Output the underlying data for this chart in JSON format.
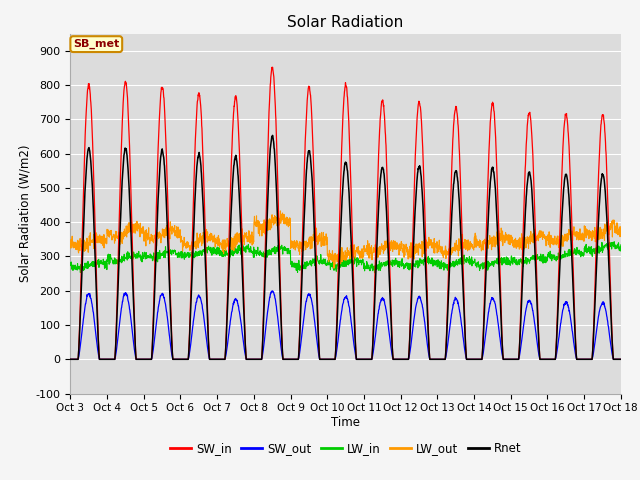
{
  "title": "Solar Radiation",
  "xlabel": "Time",
  "ylabel": "Solar Radiation (W/m2)",
  "ylim": [
    -100,
    950
  ],
  "yticks": [
    -100,
    0,
    100,
    200,
    300,
    400,
    500,
    600,
    700,
    800,
    900
  ],
  "plot_bg_color": "#dcdcdc",
  "fig_bg_color": "#f5f5f5",
  "grid_color": "#ffffff",
  "colors": {
    "SW_in": "#ff0000",
    "SW_out": "#0000ff",
    "LW_in": "#00cc00",
    "LW_out": "#ff9900",
    "Rnet": "#000000"
  },
  "legend_label": "SB_met",
  "n_days": 15,
  "xtick_labels": [
    "Oct 3",
    "Oct 4",
    "Oct 5",
    "Oct 6",
    "Oct 7",
    "Oct 8",
    "Oct 9",
    "Oct 10",
    "Oct 11",
    "Oct 12",
    "Oct 13",
    "Oct 14",
    "Oct 15",
    "Oct 16",
    "Oct 17",
    "Oct 18"
  ],
  "SW_in_peaks": [
    800,
    810,
    795,
    775,
    765,
    850,
    795,
    800,
    755,
    750,
    735,
    745,
    720,
    715,
    715
  ],
  "SW_out_peaks": [
    190,
    193,
    190,
    185,
    175,
    200,
    190,
    183,
    177,
    182,
    177,
    178,
    172,
    167,
    165
  ],
  "Rnet_peaks": [
    615,
    615,
    610,
    598,
    590,
    650,
    608,
    575,
    560,
    563,
    550,
    558,
    545,
    540,
    540
  ],
  "LW_in_base": [
    275,
    295,
    305,
    310,
    315,
    315,
    280,
    280,
    275,
    280,
    280,
    280,
    290,
    305,
    325
  ],
  "LW_out_base": [
    340,
    370,
    365,
    345,
    345,
    400,
    340,
    305,
    325,
    325,
    325,
    345,
    350,
    355,
    375
  ]
}
